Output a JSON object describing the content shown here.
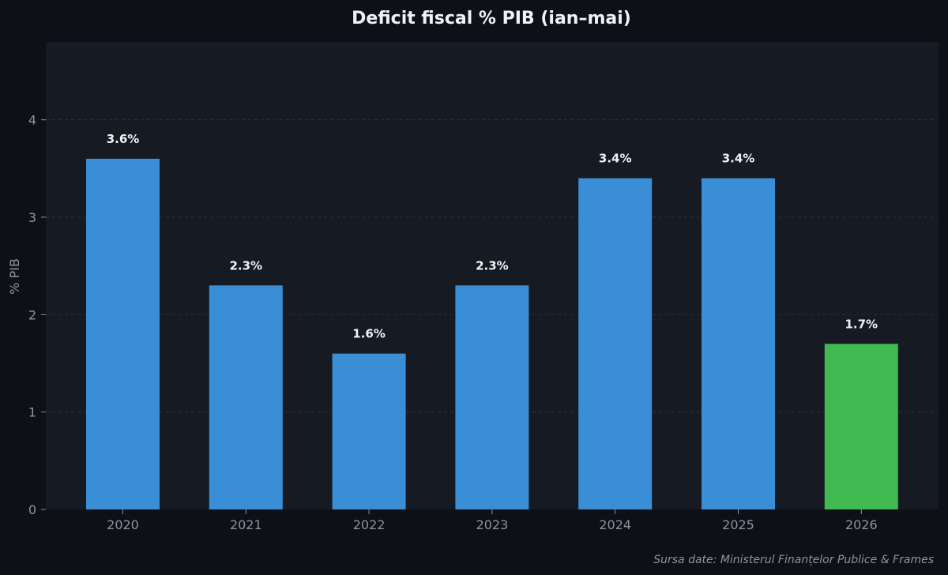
{
  "chart_data": {
    "type": "bar",
    "title": "Deficit fiscal % PIB  (ian–mai)",
    "xlabel": "",
    "ylabel": "% PIB",
    "ylim": [
      0,
      4.8
    ],
    "yticks": [
      0,
      1,
      2,
      3,
      4
    ],
    "grid": true,
    "categories": [
      "2020",
      "2021",
      "2022",
      "2023",
      "2024",
      "2025",
      "2026"
    ],
    "values": [
      3.6,
      2.3,
      1.6,
      2.3,
      3.4,
      3.4,
      1.7
    ],
    "value_labels": [
      "3.6%",
      "2.3%",
      "1.6%",
      "2.3%",
      "3.4%",
      "3.4%",
      "1.7%"
    ],
    "bar_colors": [
      "#3a8ed6",
      "#3a8ed6",
      "#3a8ed6",
      "#3a8ed6",
      "#3a8ed6",
      "#3a8ed6",
      "#3fb950"
    ],
    "source": "Sursa date: Ministerul Finanțelor Publice & Frames"
  },
  "colors": {
    "page_background": "#0d1017",
    "plot_background": "#161a22",
    "title": "#f0f3f6",
    "tick": "#8b949e",
    "value_label": "#f0f3f6",
    "grid": "#2a3039",
    "source": "#8b949e"
  }
}
